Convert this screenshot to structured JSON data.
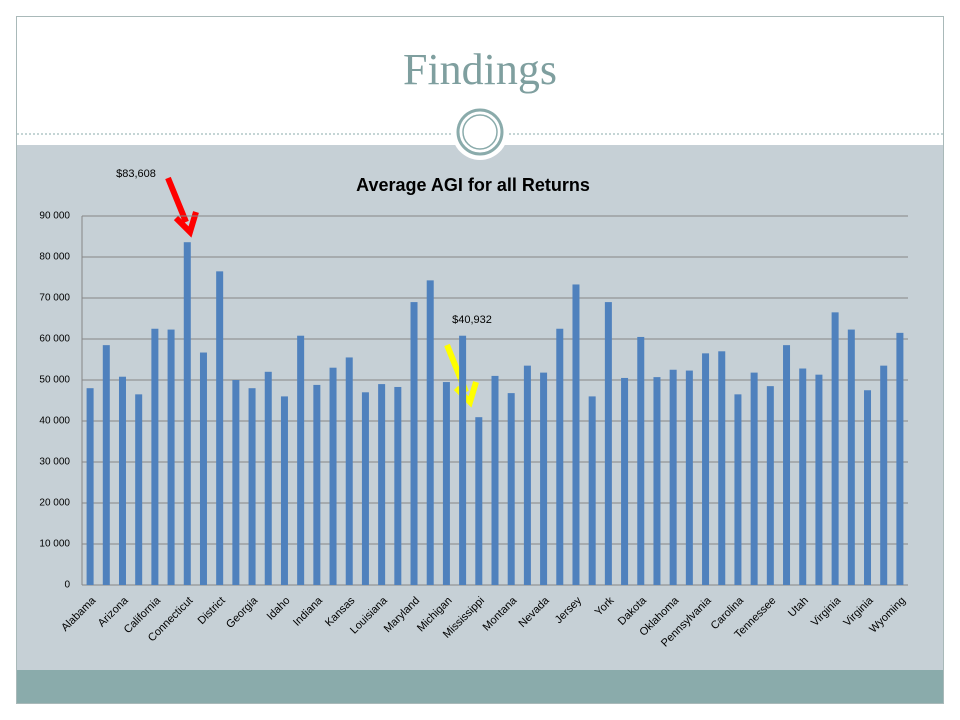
{
  "slide": {
    "title": "Findings"
  },
  "chart_data": {
    "type": "bar",
    "title": "Average AGI for all Returns",
    "categories": [
      "Alabama",
      null,
      "Arizona",
      null,
      "California",
      null,
      "Connecticut",
      null,
      "District",
      null,
      "Georgia",
      null,
      "Idaho",
      null,
      "Indiana",
      null,
      "Kansas",
      null,
      "Louisiana",
      null,
      "Maryland",
      null,
      "Michigan",
      null,
      "Mississippi",
      null,
      "Montana",
      null,
      "Nevada",
      null,
      "Jersey",
      null,
      "York",
      null,
      "Dakota",
      null,
      "Oklahoma",
      null,
      "Pennsylvania",
      null,
      "Carolina",
      null,
      "Tennessee",
      null,
      "Utah",
      null,
      "Virginia",
      null,
      "Virginia",
      null,
      "Wyoming"
    ],
    "values": [
      48000,
      58500,
      50800,
      46500,
      62500,
      62300,
      83608,
      56700,
      76500,
      50000,
      48000,
      52000,
      46000,
      60800,
      48800,
      53000,
      55500,
      47000,
      49000,
      48300,
      69000,
      74300,
      49500,
      60800,
      40932,
      51000,
      46800,
      53500,
      51800,
      62500,
      73300,
      46000,
      69000,
      50500,
      60500,
      50700,
      52500,
      52300,
      56500,
      57000,
      46500,
      51800,
      48500,
      58500,
      52800,
      51300,
      66500,
      62300,
      47500,
      53500,
      61500
    ],
    "color": "#4f81bd",
    "ylim": [
      0,
      90000
    ],
    "yticks": [
      0,
      {
        "value": 10000,
        "label": "10 000"
      },
      {
        "value": 20000,
        "label": "20 000"
      },
      {
        "value": 30000,
        "label": "30 000"
      },
      {
        "value": 40000,
        "label": "40 000"
      },
      {
        "value": 50000,
        "label": "50 000"
      },
      {
        "value": 60000,
        "label": "60 000"
      },
      {
        "value": 70000,
        "label": "70 000"
      },
      {
        "value": 80000,
        "label": "80 000"
      },
      {
        "value": 90000,
        "label": "90 000"
      }
    ],
    "grid": true,
    "annotations": [
      "$83,608",
      "$40,932"
    ]
  }
}
